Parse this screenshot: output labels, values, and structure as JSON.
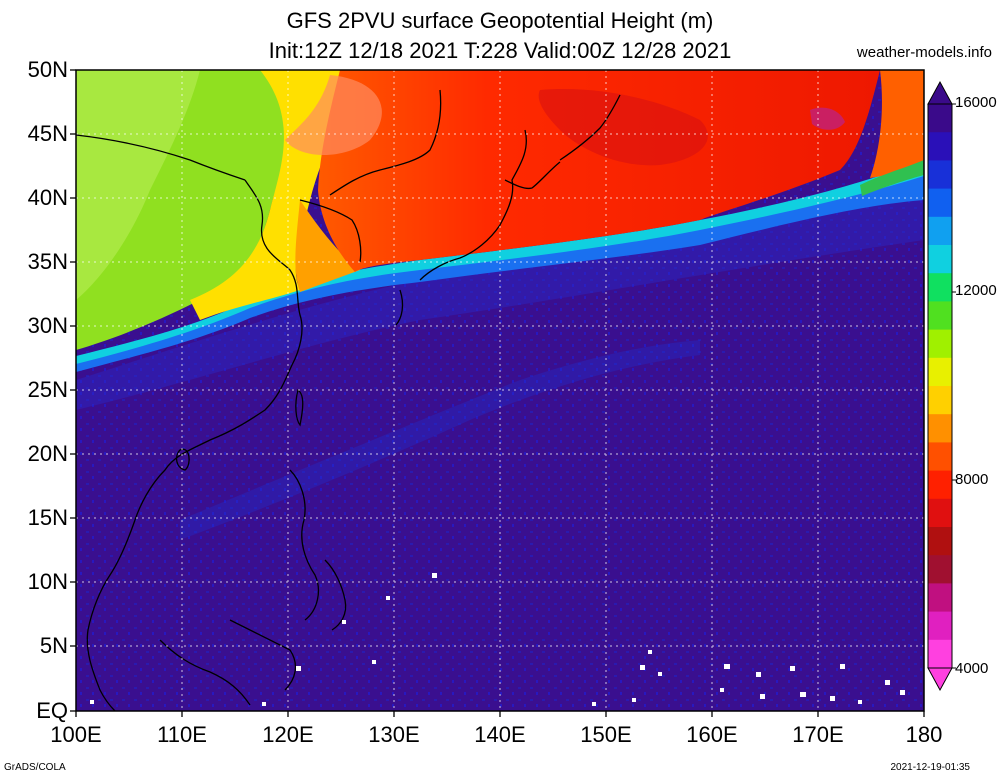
{
  "title": {
    "line1": "GFS 2PVU surface Geopotential Height (m)",
    "line2": "Init:12Z 12/18 2021 T:228 Valid:00Z 12/28 2021"
  },
  "site": "weather-models.info",
  "lat_labels": [
    "50N",
    "45N",
    "40N",
    "35N",
    "30N",
    "25N",
    "20N",
    "15N",
    "10N",
    "5N",
    "EQ"
  ],
  "lon_labels": [
    "100E",
    "110E",
    "120E",
    "130E",
    "140E",
    "150E",
    "160E",
    "170E",
    "180"
  ],
  "colorbar": {
    "labels": [
      "16000",
      "12000",
      "8000",
      "4000"
    ],
    "colors": [
      "#3a0a8a",
      "#2a10b8",
      "#1830d8",
      "#1060f0",
      "#10a0f0",
      "#10d0e0",
      "#10e060",
      "#50e020",
      "#a0f000",
      "#e8f000",
      "#ffd000",
      "#ff9000",
      "#ff5000",
      "#ff2000",
      "#e01010",
      "#b01010",
      "#a01030",
      "#c01080",
      "#e020c0",
      "#ff40e0"
    ]
  },
  "footer": {
    "left": "GrADS/COLA",
    "right": "2021-12-19-01:35"
  }
}
